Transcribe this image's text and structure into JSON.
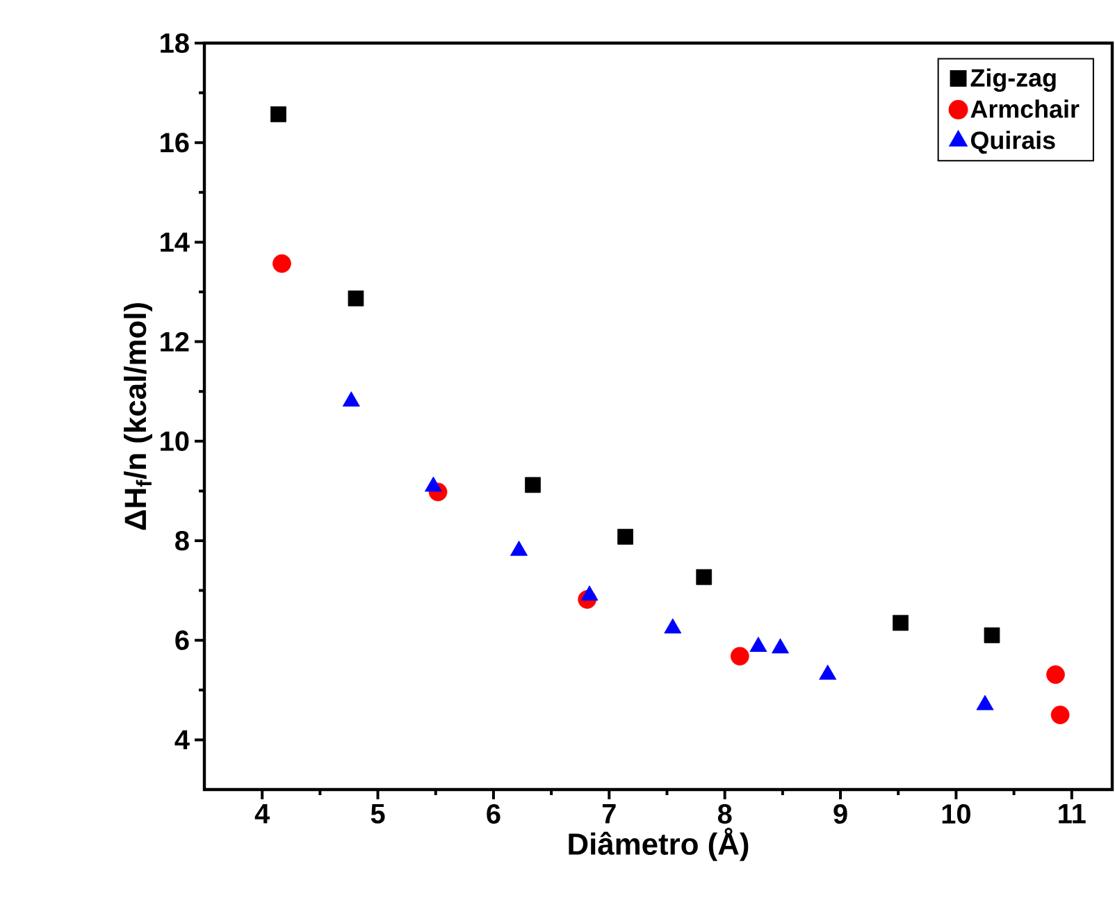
{
  "chart_data": {
    "type": "scatter",
    "xlabel": "Diâmetro (Å)",
    "ylabel": "ΔH$_{f}$/n (kcal/mol)",
    "xlim": [
      3.5,
      11.35
    ],
    "ylim": [
      3,
      18
    ],
    "xticks": [
      4,
      5,
      6,
      7,
      8,
      9,
      10,
      11
    ],
    "yticks": [
      4,
      6,
      8,
      10,
      12,
      14,
      16,
      18
    ],
    "grid": false,
    "legend": "top right",
    "series": [
      {
        "name": "Zig-zag",
        "color": "#000000",
        "marker": "square",
        "x": [
          4.14,
          4.81,
          6.34,
          7.14,
          7.82,
          9.52,
          10.31
        ],
        "values": [
          16.57,
          12.87,
          9.12,
          8.08,
          7.27,
          6.35,
          6.1
        ]
      },
      {
        "name": "Armchair",
        "color": "#ff0000",
        "marker": "circle",
        "x": [
          4.17,
          5.52,
          6.81,
          8.13,
          10.86,
          10.9
        ],
        "values": [
          13.57,
          8.98,
          6.82,
          5.68,
          5.31,
          4.5
        ]
      },
      {
        "name": "Quirais",
        "color": "#0000ff",
        "marker": "triangle",
        "x": [
          4.77,
          5.48,
          6.22,
          6.83,
          7.55,
          8.29,
          8.48,
          8.89,
          10.25
        ],
        "values": [
          10.8,
          9.09,
          7.8,
          6.9,
          6.24,
          5.87,
          5.84,
          5.31,
          4.7
        ]
      }
    ]
  }
}
